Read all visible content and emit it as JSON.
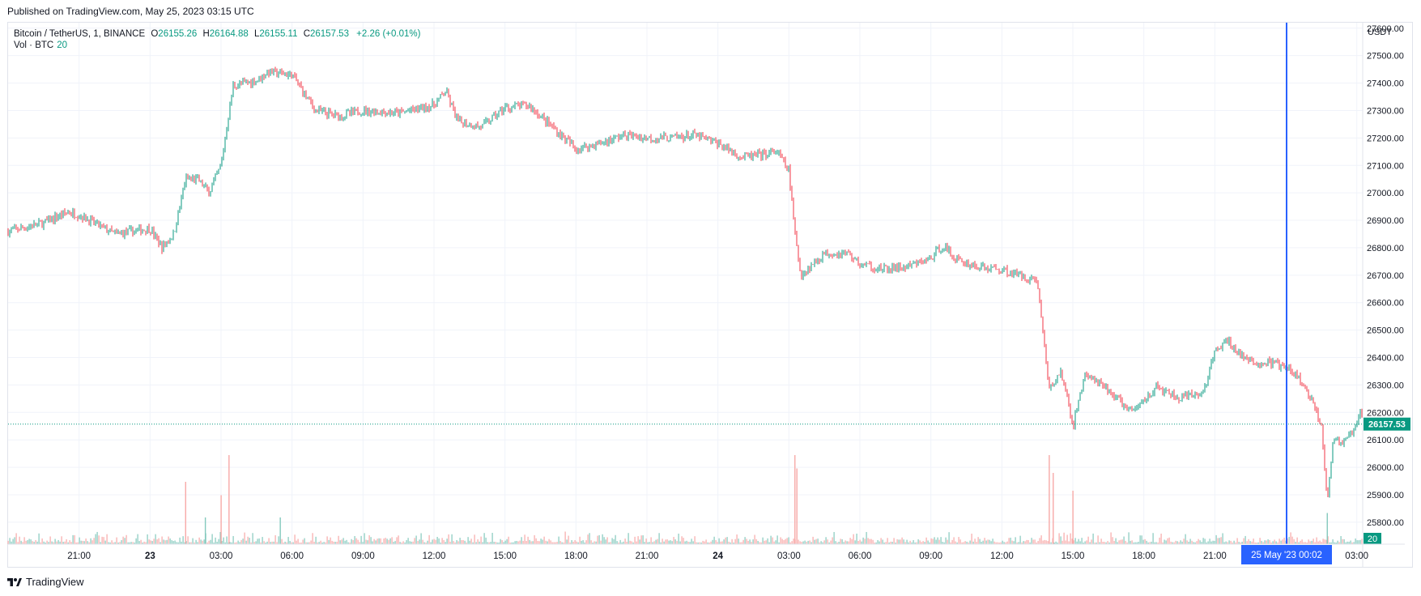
{
  "header": {
    "published": "Published on TradingView.com, May 25, 2023 03:15 UTC"
  },
  "legend": {
    "symbol": "Bitcoin / TetherUS, 1, BINANCE",
    "open_key": "O",
    "open": "26155.26",
    "high_key": "H",
    "high": "26164.88",
    "low_key": "L",
    "low": "26155.11",
    "close_key": "C",
    "close": "26157.53",
    "change": "+2.26 (+0.01%)",
    "volume_label": "Vol · BTC",
    "volume_value": "20"
  },
  "axis": {
    "unit": "USDT",
    "y_ticks": [
      "27600.00",
      "27500.00",
      "27400.00",
      "27300.00",
      "27200.00",
      "27100.00",
      "27000.00",
      "26900.00",
      "26800.00",
      "26700.00",
      "26600.00",
      "26500.00",
      "26400.00",
      "26300.00",
      "26200.00",
      "26100.00",
      "26000.00",
      "25900.00",
      "25800.00"
    ],
    "x_ticks": [
      "21:00",
      "23",
      "03:00",
      "06:00",
      "09:00",
      "12:00",
      "15:00",
      "18:00",
      "21:00",
      "24",
      "03:00",
      "06:00",
      "09:00",
      "12:00",
      "15:00",
      "18:00",
      "21:00",
      "03:00"
    ],
    "current_price_label": "26157.53",
    "volume_badge": "20",
    "crosshair_label": "25 May '23   00:02"
  },
  "colors": {
    "up": "#089981",
    "down": "#f23645",
    "crosshair": "#2962ff",
    "up_vol": "#84c9bd",
    "down_vol": "#f7a9a7"
  },
  "footer": {
    "brand": "TradingView"
  },
  "chart_data": {
    "type": "candlestick",
    "symbol": "Bitcoin / TetherUS",
    "interval": "1",
    "exchange": "BINANCE",
    "y_unit": "USDT",
    "ylim": [
      25720,
      27620
    ],
    "x_range": [
      "2023-05-22 18:00",
      "2023-05-25 03:15"
    ],
    "price_path": [
      {
        "t": "2023-05-22 18:00",
        "p": 26860
      },
      {
        "t": "2023-05-22 19:30",
        "p": 26890
      },
      {
        "t": "2023-05-22 20:30",
        "p": 26930
      },
      {
        "t": "2023-05-22 21:00",
        "p": 26920
      },
      {
        "t": "2023-05-22 22:30",
        "p": 26850
      },
      {
        "t": "2023-05-23 00:00",
        "p": 26870
      },
      {
        "t": "2023-05-23 00:30",
        "p": 26800
      },
      {
        "t": "2023-05-23 01:00",
        "p": 26850
      },
      {
        "t": "2023-05-23 01:30",
        "p": 27050
      },
      {
        "t": "2023-05-23 02:00",
        "p": 27050
      },
      {
        "t": "2023-05-23 02:30",
        "p": 27000
      },
      {
        "t": "2023-05-23 03:00",
        "p": 27100
      },
      {
        "t": "2023-05-23 03:30",
        "p": 27390
      },
      {
        "t": "2023-05-23 04:30",
        "p": 27410
      },
      {
        "t": "2023-05-23 05:00",
        "p": 27440
      },
      {
        "t": "2023-05-23 06:00",
        "p": 27430
      },
      {
        "t": "2023-05-23 07:00",
        "p": 27300
      },
      {
        "t": "2023-05-23 08:00",
        "p": 27280
      },
      {
        "t": "2023-05-23 09:00",
        "p": 27300
      },
      {
        "t": "2023-05-23 10:30",
        "p": 27290
      },
      {
        "t": "2023-05-23 12:00",
        "p": 27320
      },
      {
        "t": "2023-05-23 12:30",
        "p": 27370
      },
      {
        "t": "2023-05-23 13:00",
        "p": 27260
      },
      {
        "t": "2023-05-23 14:00",
        "p": 27240
      },
      {
        "t": "2023-05-23 15:00",
        "p": 27310
      },
      {
        "t": "2023-05-23 16:00",
        "p": 27320
      },
      {
        "t": "2023-05-23 17:00",
        "p": 27240
      },
      {
        "t": "2023-05-23 18:00",
        "p": 27160
      },
      {
        "t": "2023-05-23 19:00",
        "p": 27180
      },
      {
        "t": "2023-05-23 20:00",
        "p": 27210
      },
      {
        "t": "2023-05-23 21:00",
        "p": 27200
      },
      {
        "t": "2023-05-23 22:00",
        "p": 27200
      },
      {
        "t": "2023-05-23 23:00",
        "p": 27210
      },
      {
        "t": "2023-05-24 00:00",
        "p": 27180
      },
      {
        "t": "2023-05-24 01:00",
        "p": 27130
      },
      {
        "t": "2023-05-24 02:00",
        "p": 27140
      },
      {
        "t": "2023-05-24 02:30",
        "p": 27150
      },
      {
        "t": "2023-05-24 03:00",
        "p": 27080
      },
      {
        "t": "2023-05-24 03:15",
        "p": 26850
      },
      {
        "t": "2023-05-24 03:30",
        "p": 26700
      },
      {
        "t": "2023-05-24 04:30",
        "p": 26780
      },
      {
        "t": "2023-05-24 05:30",
        "p": 26780
      },
      {
        "t": "2023-05-24 06:00",
        "p": 26740
      },
      {
        "t": "2023-05-24 07:00",
        "p": 26720
      },
      {
        "t": "2023-05-24 08:00",
        "p": 26730
      },
      {
        "t": "2023-05-24 09:00",
        "p": 26760
      },
      {
        "t": "2023-05-24 09:30",
        "p": 26810
      },
      {
        "t": "2023-05-24 10:00",
        "p": 26760
      },
      {
        "t": "2023-05-24 11:00",
        "p": 26730
      },
      {
        "t": "2023-05-24 12:00",
        "p": 26720
      },
      {
        "t": "2023-05-24 13:30",
        "p": 26680
      },
      {
        "t": "2023-05-24 14:00",
        "p": 26280
      },
      {
        "t": "2023-05-24 14:30",
        "p": 26350
      },
      {
        "t": "2023-05-24 15:00",
        "p": 26150
      },
      {
        "t": "2023-05-24 15:30",
        "p": 26340
      },
      {
        "t": "2023-05-24 16:30",
        "p": 26280
      },
      {
        "t": "2023-05-24 17:30",
        "p": 26200
      },
      {
        "t": "2023-05-24 18:30",
        "p": 26290
      },
      {
        "t": "2023-05-24 19:30",
        "p": 26250
      },
      {
        "t": "2023-05-24 20:30",
        "p": 26270
      },
      {
        "t": "2023-05-24 21:00",
        "p": 26420
      },
      {
        "t": "2023-05-24 21:30",
        "p": 26460
      },
      {
        "t": "2023-05-24 22:30",
        "p": 26380
      },
      {
        "t": "2023-05-24 23:30",
        "p": 26380
      },
      {
        "t": "2023-05-25 00:00",
        "p": 26360
      },
      {
        "t": "2023-05-25 00:30",
        "p": 26330
      },
      {
        "t": "2023-05-25 01:00",
        "p": 26260
      },
      {
        "t": "2023-05-25 01:30",
        "p": 26160
      },
      {
        "t": "2023-05-25 01:45",
        "p": 25880
      },
      {
        "t": "2023-05-25 02:00",
        "p": 26100
      },
      {
        "t": "2023-05-25 02:30",
        "p": 26090
      },
      {
        "t": "2023-05-25 03:00",
        "p": 26150
      },
      {
        "t": "2023-05-25 03:10",
        "p": 26210
      },
      {
        "t": "2023-05-25 03:15",
        "p": 26157.53
      }
    ],
    "last_price": 26157.53,
    "crosshair_time": "2023-05-25 00:02",
    "volume_spikes": [
      {
        "t": "2023-05-23 01:30",
        "v": 0.7
      },
      {
        "t": "2023-05-23 02:20",
        "v": 0.3
      },
      {
        "t": "2023-05-23 03:20",
        "v": 1.0
      },
      {
        "t": "2023-05-23 03:00",
        "v": 0.55
      },
      {
        "t": "2023-05-23 05:30",
        "v": 0.3
      },
      {
        "t": "2023-05-24 03:15",
        "v": 1.0
      },
      {
        "t": "2023-05-24 03:20",
        "v": 0.85
      },
      {
        "t": "2023-05-24 14:00",
        "v": 1.0
      },
      {
        "t": "2023-05-24 14:10",
        "v": 0.8
      },
      {
        "t": "2023-05-24 15:00",
        "v": 0.6
      },
      {
        "t": "2023-05-25 01:45",
        "v": 0.35
      }
    ],
    "grid": true
  }
}
